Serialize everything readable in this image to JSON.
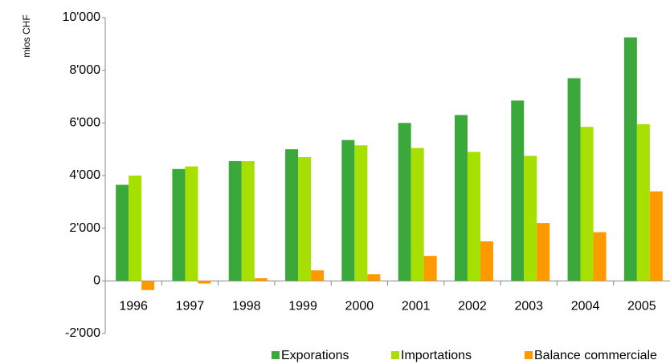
{
  "chart_data": {
    "type": "bar",
    "y_label": "mios CHF",
    "categories": [
      "1996",
      "1997",
      "1998",
      "1999",
      "2000",
      "2001",
      "2002",
      "2003",
      "2004",
      "2005"
    ],
    "series": [
      {
        "name": "Exporations",
        "color": "#3aa83a",
        "values": [
          3650,
          4250,
          4550,
          5000,
          5350,
          6000,
          6300,
          6850,
          7700,
          9250
        ]
      },
      {
        "name": "Importations",
        "color": "#a6e000",
        "values": [
          4000,
          4350,
          4550,
          4700,
          5150,
          5050,
          4900,
          4750,
          5850,
          5950
        ]
      },
      {
        "name": "Balance commerciale",
        "color": "#ff9900",
        "values": [
          -350,
          -100,
          100,
          400,
          250,
          950,
          1500,
          2200,
          1850,
          3400
        ]
      }
    ],
    "ylim": [
      -2000,
      10000
    ],
    "yticks": [
      {
        "value": -2000,
        "label": "-2'000"
      },
      0,
      {
        "value": 2000,
        "label": "2'000"
      },
      {
        "value": 4000,
        "label": "4'000"
      },
      {
        "value": 6000,
        "label": "6'000"
      },
      {
        "value": 8000,
        "label": "8'000"
      },
      {
        "value": 10000,
        "label": "10'000"
      }
    ],
    "grid": false,
    "legend": "bottom"
  }
}
